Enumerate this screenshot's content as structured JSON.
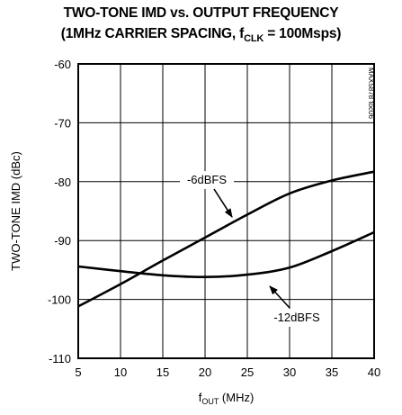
{
  "chart_data": {
    "type": "line",
    "title_line1": "TWO-TONE IMD vs. OUTPUT FREQUENCY",
    "title_line2_pre": "(1MHz CARRIER SPACING, f",
    "title_line2_sub": "CLK",
    "title_line2_post": " = 100Msps)",
    "xlabel_pre": "f",
    "xlabel_sub": "OUT",
    "xlabel_post": " (MHz)",
    "ylabel": "TWO-TONE IMD (dBc)",
    "xlim": [
      5,
      40
    ],
    "ylim": [
      -110,
      -60
    ],
    "xticks": [
      5,
      10,
      15,
      20,
      25,
      30,
      35,
      40
    ],
    "yticks": [
      -60,
      -70,
      -80,
      -90,
      -100,
      -110
    ],
    "grid": true,
    "watermark": "MAX5878 toc06",
    "series": [
      {
        "name": "-6dBFS",
        "x": [
          5,
          10,
          15,
          20,
          25,
          30,
          35,
          40
        ],
        "y": [
          -101.2,
          -97.4,
          -93.4,
          -89.5,
          -85.6,
          -82.0,
          -79.8,
          -78.3
        ]
      },
      {
        "name": "-12dBFS",
        "x": [
          5,
          10,
          15,
          20,
          25,
          30,
          35,
          40
        ],
        "y": [
          -94.4,
          -95.2,
          -95.9,
          -96.2,
          -95.8,
          -94.6,
          -91.8,
          -88.6
        ]
      }
    ],
    "annotations": [
      {
        "text": "-6dBFS",
        "series": 0
      },
      {
        "text": "-12dBFS",
        "series": 1
      }
    ]
  }
}
